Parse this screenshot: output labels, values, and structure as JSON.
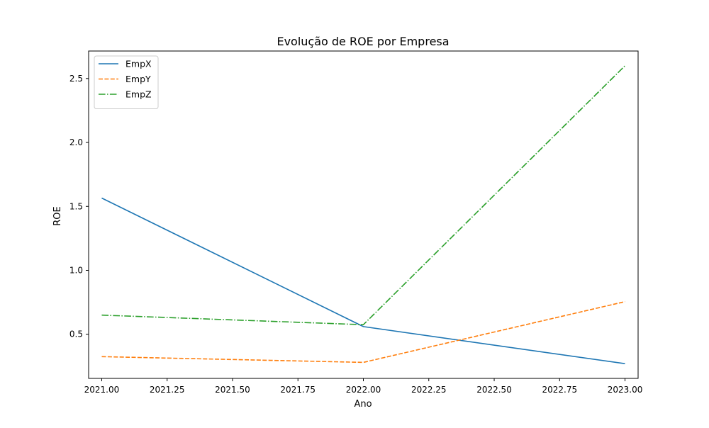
{
  "chart_data": {
    "type": "line",
    "title": "Evolução de ROE por Empresa",
    "xlabel": "Ano",
    "ylabel": "ROE",
    "xlim": [
      2020.95,
      2023.05
    ],
    "ylim": [
      0.155,
      2.715
    ],
    "x_ticks": [
      2021.0,
      2021.25,
      2021.5,
      2021.75,
      2022.0,
      2022.25,
      2022.5,
      2022.75,
      2023.0
    ],
    "x_tick_labels": [
      "2021.00",
      "2021.25",
      "2021.50",
      "2021.75",
      "2022.00",
      "2022.25",
      "2022.50",
      "2022.75",
      "2023.00"
    ],
    "y_ticks": [
      0.5,
      1.0,
      1.5,
      2.0,
      2.5
    ],
    "y_tick_labels": [
      "0.5",
      "1.0",
      "1.5",
      "2.0",
      "2.5"
    ],
    "grid": false,
    "legend_position": "upper-left",
    "x": [
      2021,
      2022,
      2023
    ],
    "series": [
      {
        "name": "EmpX",
        "values": [
          1.565,
          0.56,
          0.27
        ],
        "color": "#1f77b4",
        "style": "solid"
      },
      {
        "name": "EmpY",
        "values": [
          0.325,
          0.28,
          0.755
        ],
        "color": "#ff7f0e",
        "style": "dashed"
      },
      {
        "name": "EmpZ",
        "values": [
          0.65,
          0.575,
          2.6
        ],
        "color": "#2ca02c",
        "style": "dashdot"
      }
    ]
  }
}
